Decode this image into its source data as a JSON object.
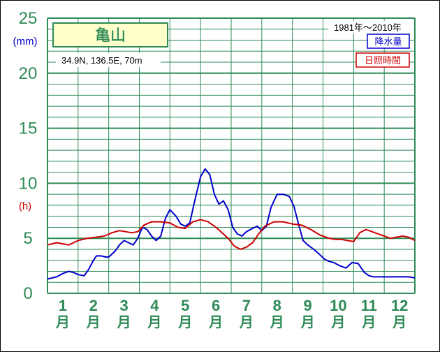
{
  "chart_data": {
    "type": "line",
    "title": "亀山",
    "location": "34.9N,  136.5E,  70m",
    "period": "1981年〜2010年",
    "y_unit_precip": "(mm)",
    "y_unit_sun": "(h)",
    "y_ticks": [
      "25",
      "20",
      "15",
      "10",
      "5",
      "0"
    ],
    "ylim": [
      0,
      25
    ],
    "months": [
      "1",
      "2",
      "3",
      "4",
      "5",
      "6",
      "7",
      "8",
      "9",
      "10",
      "11",
      "12"
    ],
    "month_suffix": "月",
    "grid": true,
    "legend_position": "top-right",
    "series": [
      {
        "name": "降水量",
        "color": "#0000cc",
        "x": [
          0.0,
          0.3,
          0.5,
          0.7,
          0.85,
          1.0,
          1.2,
          1.35,
          1.5,
          1.6,
          1.75,
          1.9,
          2.0,
          2.2,
          2.35,
          2.5,
          2.65,
          2.8,
          2.95,
          3.1,
          3.25,
          3.4,
          3.55,
          3.7,
          3.85,
          4.0,
          4.2,
          4.35,
          4.5,
          4.65,
          4.8,
          5.0,
          5.15,
          5.3,
          5.45,
          5.6,
          5.75,
          5.9,
          6.05,
          6.2,
          6.35,
          6.5,
          6.7,
          6.85,
          7.0,
          7.15,
          7.3,
          7.5,
          7.7,
          7.9,
          8.05,
          8.2,
          8.35,
          8.5,
          8.7,
          8.9,
          9.05,
          9.2,
          9.35,
          9.55,
          9.75,
          9.95,
          10.15,
          10.35,
          10.5,
          10.65,
          10.8,
          11.0,
          11.2,
          11.4,
          11.6,
          11.8,
          12.0
        ],
        "values": [
          1.3,
          1.5,
          1.8,
          2.0,
          1.9,
          1.7,
          1.6,
          2.2,
          3.0,
          3.4,
          3.4,
          3.3,
          3.3,
          3.8,
          4.4,
          4.8,
          4.6,
          4.4,
          5.0,
          6.0,
          5.8,
          5.2,
          4.8,
          5.2,
          6.8,
          7.6,
          7.0,
          6.3,
          6.1,
          6.4,
          8.3,
          10.6,
          11.3,
          10.8,
          9.0,
          8.1,
          8.4,
          7.6,
          6.0,
          5.4,
          5.2,
          5.6,
          5.9,
          6.1,
          5.7,
          6.1,
          7.8,
          9.0,
          9.0,
          8.8,
          7.9,
          6.3,
          4.8,
          4.4,
          4.0,
          3.5,
          3.1,
          2.9,
          2.8,
          2.5,
          2.3,
          2.8,
          2.7,
          1.9,
          1.6,
          1.5,
          1.5,
          1.5,
          1.5,
          1.5,
          1.5,
          1.5,
          1.4
        ]
      },
      {
        "name": "日照時間",
        "color": "#cc0000",
        "x": [
          0.0,
          0.3,
          0.5,
          0.7,
          1.0,
          1.3,
          1.6,
          1.85,
          2.1,
          2.35,
          2.55,
          2.75,
          2.95,
          3.15,
          3.4,
          3.7,
          4.0,
          4.25,
          4.5,
          4.75,
          5.0,
          5.25,
          5.5,
          5.7,
          5.9,
          6.1,
          6.3,
          6.5,
          6.7,
          6.9,
          7.1,
          7.4,
          7.7,
          8.0,
          8.3,
          8.6,
          8.9,
          9.2,
          9.4,
          9.6,
          9.8,
          10.0,
          10.2,
          10.4,
          10.6,
          10.8,
          11.0,
          11.2,
          11.4,
          11.6,
          11.8,
          12.0
        ],
        "values": [
          4.4,
          4.6,
          4.5,
          4.4,
          4.8,
          5.0,
          5.1,
          5.2,
          5.5,
          5.7,
          5.6,
          5.5,
          5.6,
          6.2,
          6.5,
          6.5,
          6.4,
          6.0,
          5.9,
          6.5,
          6.7,
          6.5,
          6.0,
          5.5,
          5.0,
          4.3,
          4.0,
          4.2,
          4.6,
          5.4,
          6.1,
          6.5,
          6.5,
          6.3,
          6.2,
          5.8,
          5.3,
          5.0,
          4.9,
          4.9,
          4.8,
          4.7,
          5.5,
          5.8,
          5.6,
          5.4,
          5.2,
          5.0,
          5.1,
          5.2,
          5.1,
          4.8
        ]
      }
    ]
  }
}
